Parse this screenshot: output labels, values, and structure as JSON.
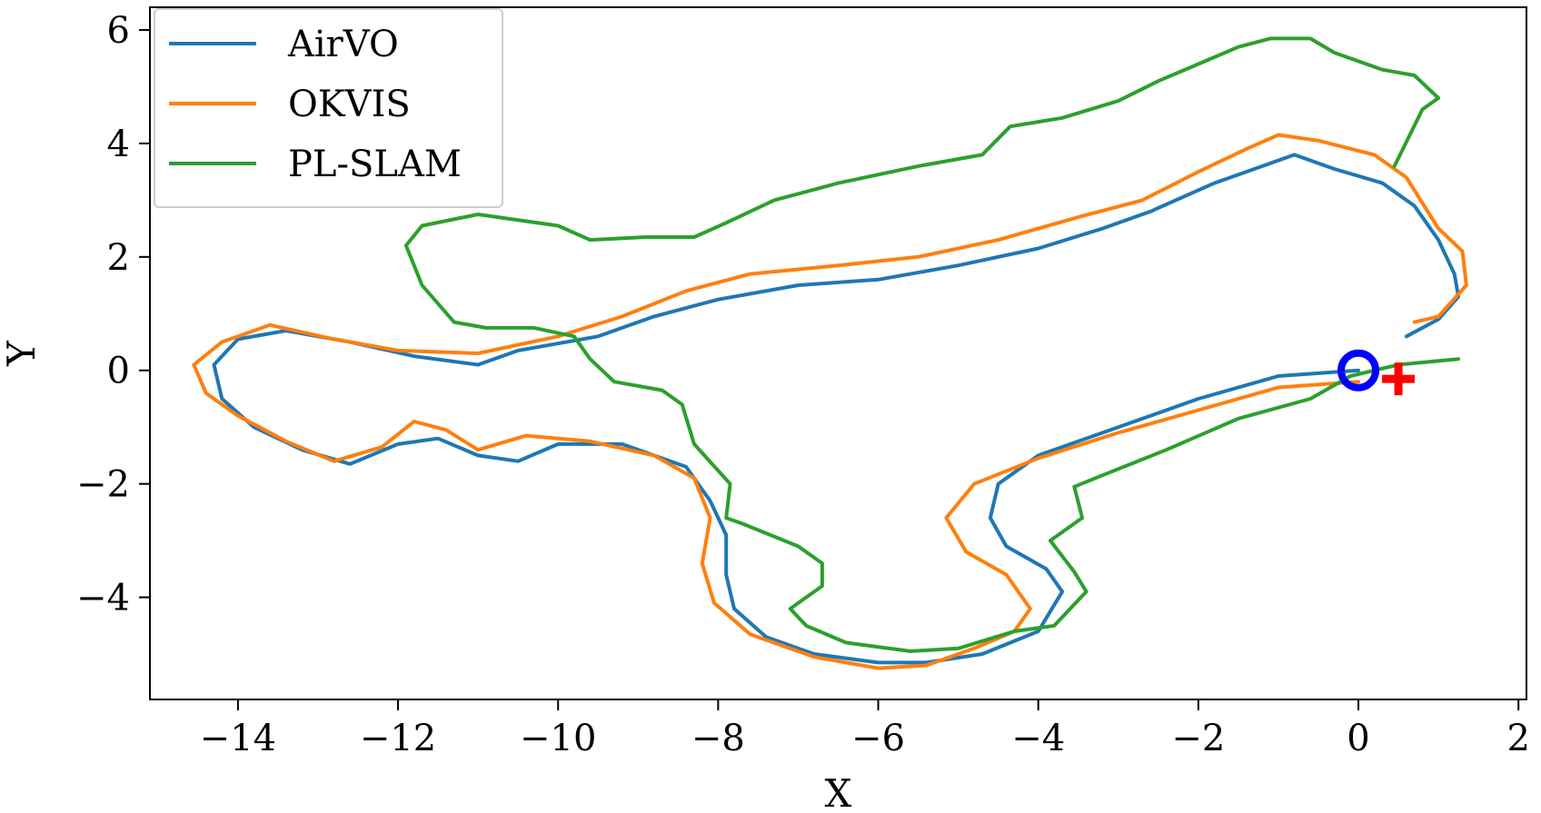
{
  "chart_data": {
    "type": "line",
    "xlabel": "X",
    "ylabel": "Y",
    "xlim": [
      -15.1,
      2.1
    ],
    "ylim": [
      -5.8,
      6.4
    ],
    "x_ticks": [
      -14,
      -12,
      -10,
      -8,
      -6,
      -4,
      -2,
      0,
      2
    ],
    "x_tick_labels": [
      "−14",
      "−12",
      "−10",
      "−8",
      "−6",
      "−4",
      "−2",
      "0",
      "2"
    ],
    "y_ticks": [
      6,
      4,
      2,
      0,
      -2,
      -4
    ],
    "y_tick_labels": [
      "6",
      "4",
      "2",
      "0",
      "−2",
      "−4"
    ],
    "grid": false,
    "legend_position": "top-left",
    "series": [
      {
        "name": "AirVO",
        "color": "#1f77b4",
        "points": [
          [
            0.0,
            0.0
          ],
          [
            -1.0,
            -0.1
          ],
          [
            -2.0,
            -0.5
          ],
          [
            -3.0,
            -1.0
          ],
          [
            -4.0,
            -1.5
          ],
          [
            -4.5,
            -2.0
          ],
          [
            -4.6,
            -2.6
          ],
          [
            -4.4,
            -3.1
          ],
          [
            -3.9,
            -3.5
          ],
          [
            -3.7,
            -3.9
          ],
          [
            -4.0,
            -4.6
          ],
          [
            -4.7,
            -5.0
          ],
          [
            -5.4,
            -5.15
          ],
          [
            -6.0,
            -5.15
          ],
          [
            -6.8,
            -5.0
          ],
          [
            -7.4,
            -4.7
          ],
          [
            -7.8,
            -4.2
          ],
          [
            -7.9,
            -3.6
          ],
          [
            -7.9,
            -2.9
          ],
          [
            -8.1,
            -2.3
          ],
          [
            -8.4,
            -1.7
          ],
          [
            -9.2,
            -1.3
          ],
          [
            -10.0,
            -1.3
          ],
          [
            -10.5,
            -1.6
          ],
          [
            -11.0,
            -1.5
          ],
          [
            -11.5,
            -1.2
          ],
          [
            -12.0,
            -1.3
          ],
          [
            -12.6,
            -1.65
          ],
          [
            -13.2,
            -1.4
          ],
          [
            -13.8,
            -1.0
          ],
          [
            -14.2,
            -0.5
          ],
          [
            -14.3,
            0.1
          ],
          [
            -14.0,
            0.55
          ],
          [
            -13.4,
            0.7
          ],
          [
            -12.6,
            0.5
          ],
          [
            -11.8,
            0.25
          ],
          [
            -11.0,
            0.1
          ],
          [
            -10.5,
            0.35
          ],
          [
            -9.5,
            0.6
          ],
          [
            -8.8,
            0.95
          ],
          [
            -8.0,
            1.25
          ],
          [
            -7.0,
            1.5
          ],
          [
            -6.0,
            1.6
          ],
          [
            -5.0,
            1.85
          ],
          [
            -4.0,
            2.15
          ],
          [
            -3.2,
            2.5
          ],
          [
            -2.6,
            2.8
          ],
          [
            -1.8,
            3.3
          ],
          [
            -1.2,
            3.6
          ],
          [
            -0.8,
            3.8
          ],
          [
            -0.3,
            3.55
          ],
          [
            0.3,
            3.3
          ],
          [
            0.7,
            2.9
          ],
          [
            1.0,
            2.3
          ],
          [
            1.2,
            1.7
          ],
          [
            1.25,
            1.3
          ],
          [
            1.0,
            0.9
          ],
          [
            0.6,
            0.6
          ]
        ]
      },
      {
        "name": "OKVIS",
        "color": "#ff7f0e",
        "points": [
          [
            0.0,
            -0.2
          ],
          [
            -1.0,
            -0.3
          ],
          [
            -2.0,
            -0.7
          ],
          [
            -3.0,
            -1.1
          ],
          [
            -4.0,
            -1.55
          ],
          [
            -4.8,
            -2.0
          ],
          [
            -5.15,
            -2.6
          ],
          [
            -4.9,
            -3.2
          ],
          [
            -4.4,
            -3.6
          ],
          [
            -4.1,
            -4.2
          ],
          [
            -4.3,
            -4.6
          ],
          [
            -4.8,
            -4.9
          ],
          [
            -5.4,
            -5.2
          ],
          [
            -6.0,
            -5.25
          ],
          [
            -6.8,
            -5.05
          ],
          [
            -7.6,
            -4.65
          ],
          [
            -8.05,
            -4.1
          ],
          [
            -8.2,
            -3.4
          ],
          [
            -8.1,
            -2.6
          ],
          [
            -8.3,
            -1.9
          ],
          [
            -8.8,
            -1.5
          ],
          [
            -9.6,
            -1.25
          ],
          [
            -10.4,
            -1.15
          ],
          [
            -11.0,
            -1.4
          ],
          [
            -11.4,
            -1.05
          ],
          [
            -11.8,
            -0.9
          ],
          [
            -12.2,
            -1.35
          ],
          [
            -12.8,
            -1.6
          ],
          [
            -13.4,
            -1.25
          ],
          [
            -14.0,
            -0.8
          ],
          [
            -14.4,
            -0.4
          ],
          [
            -14.55,
            0.1
          ],
          [
            -14.2,
            0.5
          ],
          [
            -13.6,
            0.8
          ],
          [
            -12.8,
            0.55
          ],
          [
            -12.0,
            0.35
          ],
          [
            -11.0,
            0.3
          ],
          [
            -10.0,
            0.6
          ],
          [
            -9.2,
            0.95
          ],
          [
            -8.4,
            1.4
          ],
          [
            -7.6,
            1.7
          ],
          [
            -6.5,
            1.85
          ],
          [
            -5.5,
            2.0
          ],
          [
            -4.5,
            2.3
          ],
          [
            -3.5,
            2.7
          ],
          [
            -2.7,
            3.0
          ],
          [
            -2.0,
            3.5
          ],
          [
            -1.4,
            3.9
          ],
          [
            -1.0,
            4.15
          ],
          [
            -0.5,
            4.05
          ],
          [
            0.2,
            3.8
          ],
          [
            0.6,
            3.4
          ],
          [
            1.0,
            2.5
          ],
          [
            1.3,
            2.1
          ],
          [
            1.35,
            1.5
          ],
          [
            1.0,
            0.95
          ],
          [
            0.7,
            0.85
          ]
        ]
      },
      {
        "name": "PL-SLAM",
        "color": "#2ca02c",
        "points": [
          [
            1.25,
            0.2
          ],
          [
            0.5,
            0.1
          ],
          [
            -0.1,
            -0.1
          ],
          [
            -0.6,
            -0.5
          ],
          [
            -1.5,
            -0.85
          ],
          [
            -2.4,
            -1.4
          ],
          [
            -3.2,
            -1.85
          ],
          [
            -3.55,
            -2.05
          ],
          [
            -3.45,
            -2.6
          ],
          [
            -3.85,
            -3.0
          ],
          [
            -3.55,
            -3.55
          ],
          [
            -3.4,
            -3.9
          ],
          [
            -3.8,
            -4.5
          ],
          [
            -4.3,
            -4.6
          ],
          [
            -5.0,
            -4.9
          ],
          [
            -5.6,
            -4.95
          ],
          [
            -6.4,
            -4.8
          ],
          [
            -6.9,
            -4.5
          ],
          [
            -7.1,
            -4.2
          ],
          [
            -6.7,
            -3.8
          ],
          [
            -6.7,
            -3.4
          ],
          [
            -7.0,
            -3.1
          ],
          [
            -7.7,
            -2.7
          ],
          [
            -7.9,
            -2.6
          ],
          [
            -7.85,
            -2.0
          ],
          [
            -8.3,
            -1.3
          ],
          [
            -8.45,
            -0.6
          ],
          [
            -8.7,
            -0.35
          ],
          [
            -9.3,
            -0.2
          ],
          [
            -9.6,
            0.2
          ],
          [
            -9.8,
            0.6
          ],
          [
            -10.3,
            0.75
          ],
          [
            -10.9,
            0.75
          ],
          [
            -11.3,
            0.85
          ],
          [
            -11.7,
            1.5
          ],
          [
            -11.9,
            2.2
          ],
          [
            -11.7,
            2.55
          ],
          [
            -11.0,
            2.75
          ],
          [
            -10.0,
            2.55
          ],
          [
            -9.6,
            2.3
          ],
          [
            -8.9,
            2.35
          ],
          [
            -8.3,
            2.35
          ],
          [
            -7.9,
            2.6
          ],
          [
            -7.3,
            3.0
          ],
          [
            -6.5,
            3.3
          ],
          [
            -5.5,
            3.6
          ],
          [
            -4.7,
            3.8
          ],
          [
            -4.35,
            4.3
          ],
          [
            -3.7,
            4.45
          ],
          [
            -3.0,
            4.75
          ],
          [
            -2.5,
            5.1
          ],
          [
            -2.0,
            5.4
          ],
          [
            -1.5,
            5.7
          ],
          [
            -1.1,
            5.85
          ],
          [
            -0.6,
            5.85
          ],
          [
            -0.3,
            5.6
          ],
          [
            0.3,
            5.3
          ],
          [
            0.7,
            5.2
          ],
          [
            1.0,
            4.8
          ],
          [
            0.8,
            4.6
          ],
          [
            0.45,
            3.6
          ]
        ]
      }
    ],
    "markers": [
      {
        "type": "circle",
        "x": 0.0,
        "y": 0.0,
        "color": "#0000ff"
      },
      {
        "type": "plus",
        "x": 0.5,
        "y": -0.15,
        "color": "#ff0000"
      }
    ]
  }
}
